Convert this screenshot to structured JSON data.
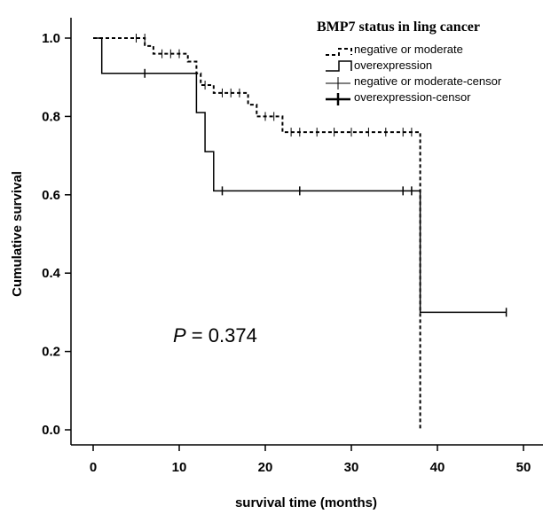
{
  "chart_data": {
    "type": "line",
    "title": "",
    "xlabel": "survival time (months)",
    "ylabel": "Cumulative survival",
    "xlim": [
      0,
      50
    ],
    "ylim": [
      0,
      1.0
    ],
    "x_ticks": [
      "0",
      "10",
      "20",
      "30",
      "40",
      "50"
    ],
    "y_ticks": [
      "0.0",
      "0.2",
      "0.4",
      "0.6",
      "0.8",
      "1.0"
    ],
    "grid": false,
    "legend": {
      "title": "BMP7 status in ling cancer",
      "placement": "top-right",
      "entries": [
        "negative or moderate",
        "overexpression",
        "negative or moderate-censor",
        "overexpression-censor"
      ]
    },
    "annotation": {
      "italic": "P",
      "rest": " = 0.374"
    },
    "series": [
      {
        "name": "negative or moderate",
        "style": "dashed",
        "steps": [
          [
            0,
            1.0
          ],
          [
            6,
            0.98
          ],
          [
            7,
            0.96
          ],
          [
            11,
            0.94
          ],
          [
            12,
            0.91
          ],
          [
            12.5,
            0.88
          ],
          [
            14,
            0.86
          ],
          [
            18,
            0.83
          ],
          [
            19,
            0.8
          ],
          [
            22,
            0.76
          ],
          [
            38,
            0.0
          ]
        ],
        "censor": [
          [
            5,
            1.0
          ],
          [
            6,
            1.0
          ],
          [
            8,
            0.96
          ],
          [
            9,
            0.96
          ],
          [
            10,
            0.96
          ],
          [
            13,
            0.88
          ],
          [
            15,
            0.86
          ],
          [
            16,
            0.86
          ],
          [
            17,
            0.86
          ],
          [
            20,
            0.8
          ],
          [
            21,
            0.8
          ],
          [
            23,
            0.76
          ],
          [
            24,
            0.76
          ],
          [
            26,
            0.76
          ],
          [
            28,
            0.76
          ],
          [
            30,
            0.76
          ],
          [
            32,
            0.76
          ],
          [
            34,
            0.76
          ],
          [
            36,
            0.76
          ],
          [
            37,
            0.76
          ]
        ]
      },
      {
        "name": "overexpression",
        "style": "solid",
        "steps": [
          [
            0,
            1.0
          ],
          [
            1,
            0.91
          ],
          [
            12,
            0.81
          ],
          [
            13,
            0.71
          ],
          [
            14,
            0.61
          ],
          [
            38,
            0.3
          ],
          [
            48,
            0.3
          ]
        ],
        "censor": [
          [
            6,
            0.91
          ],
          [
            15,
            0.61
          ],
          [
            24,
            0.61
          ],
          [
            36,
            0.61
          ],
          [
            37,
            0.61
          ],
          [
            48,
            0.3
          ]
        ]
      }
    ]
  }
}
